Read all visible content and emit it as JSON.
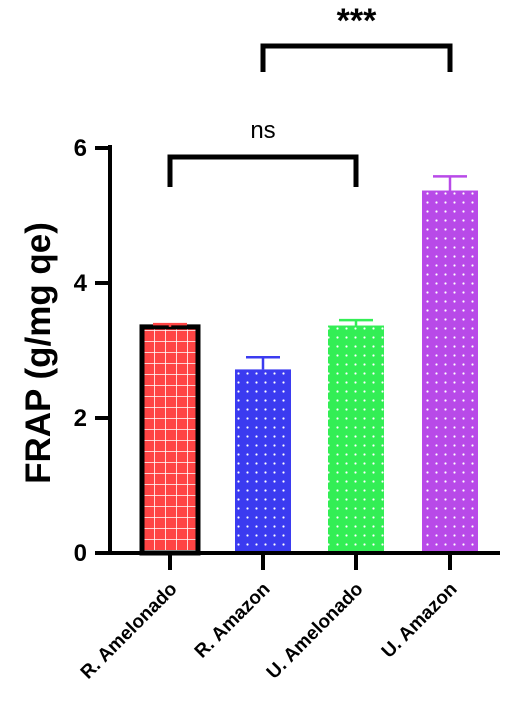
{
  "chart_data": {
    "type": "bar",
    "title": "",
    "xlabel": "",
    "ylabel": "FRAP (g/mg qe)",
    "ylim": [
      0,
      6
    ],
    "yticks": [
      "0",
      "2",
      "4",
      "6"
    ],
    "categories": [
      "R. Amelonado",
      "R. Amazon",
      "U. Amelonado",
      "U. Amazon"
    ],
    "values": [
      3.35,
      2.72,
      3.37,
      5.37
    ],
    "errors": [
      0.04,
      0.18,
      0.08,
      0.21
    ],
    "colors": [
      "#ff4444",
      "#3b3bf0",
      "#33ee55",
      "#b84ae8"
    ],
    "patterns": [
      "grid",
      "dots",
      "dots",
      "dots"
    ],
    "highlight_outline": [
      true,
      false,
      false,
      false
    ],
    "significance": [
      {
        "from": 0,
        "to": 2,
        "label": "ns"
      },
      {
        "from": 1,
        "to": 3,
        "label": "***"
      }
    ],
    "grid": false,
    "legend": "none"
  }
}
